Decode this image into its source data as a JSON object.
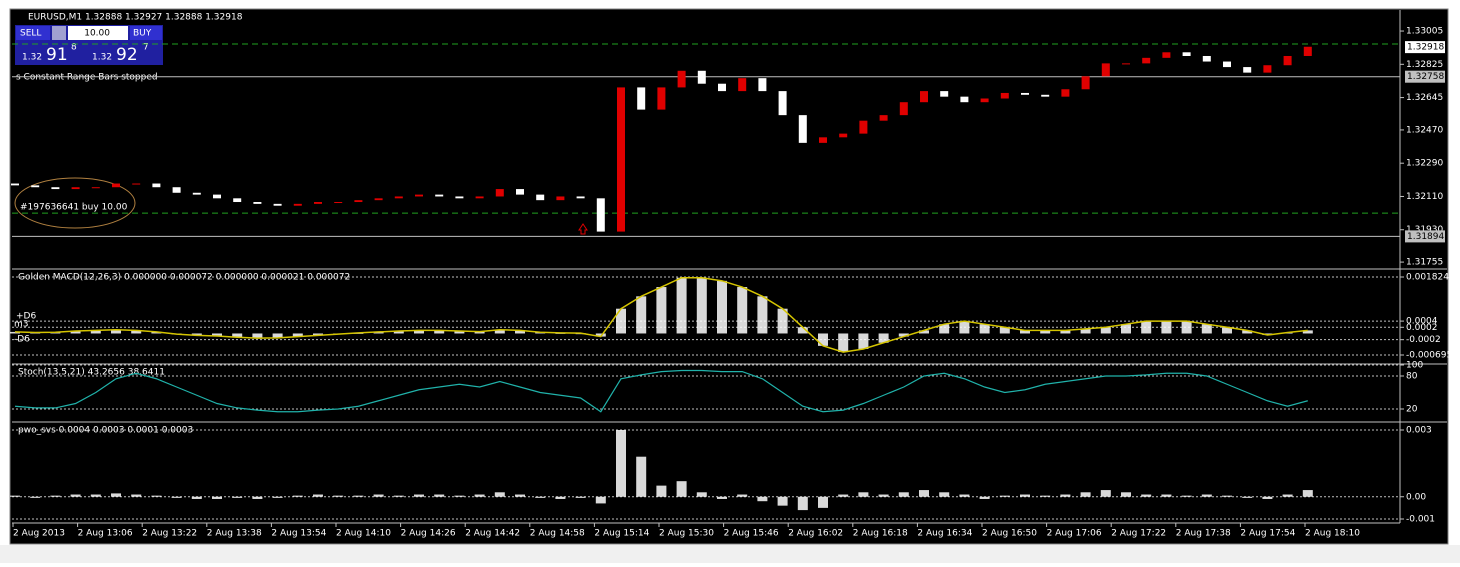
{
  "chart_data": [
    {
      "type": "candlestick",
      "title": "EURUSD,M1  1.32888 1.32927 1.32888 1.32918",
      "xticks": [
        "2 Aug 2013",
        "2 Aug 13:06",
        "2 Aug 13:22",
        "2 Aug 13:38",
        "2 Aug 13:54",
        "2 Aug 14:10",
        "2 Aug 14:26",
        "2 Aug 14:42",
        "2 Aug 14:58",
        "2 Aug 15:14",
        "2 Aug 15:30",
        "2 Aug 15:46",
        "2 Aug 16:02",
        "2 Aug 16:18",
        "2 Aug 16:34",
        "2 Aug 16:50",
        "2 Aug 17:06",
        "2 Aug 17:22",
        "2 Aug 17:38",
        "2 Aug 17:54",
        "2 Aug 18:10"
      ],
      "open": [
        1.3218,
        1.3217,
        1.3216,
        1.3215,
        1.3216,
        1.3216,
        1.3218,
        1.3218,
        1.3216,
        1.3213,
        1.3212,
        1.321,
        1.3208,
        1.3207,
        1.3206,
        1.3207,
        1.3208,
        1.3208,
        1.3209,
        1.321,
        1.3211,
        1.3212,
        1.3211,
        1.321,
        1.3211,
        1.3215,
        1.3212,
        1.3209,
        1.3211,
        1.321,
        1.3192,
        1.327,
        1.3258,
        1.327,
        1.3279,
        1.3272,
        1.3268,
        1.3275,
        1.3268,
        1.3255,
        1.324,
        1.3243,
        1.3245,
        1.3252,
        1.3255,
        1.3262,
        1.3268,
        1.3265,
        1.3262,
        1.3264,
        1.3267,
        1.3266,
        1.3265,
        1.3269,
        1.3276,
        1.3283,
        1.3283,
        1.3286,
        1.3289,
        1.3287,
        1.3284,
        1.3281,
        1.3278,
        1.3282,
        1.3287
      ],
      "close": [
        1.3217,
        1.3216,
        1.3215,
        1.3216,
        1.3216,
        1.3218,
        1.3218,
        1.3216,
        1.3213,
        1.3212,
        1.321,
        1.3208,
        1.3207,
        1.3206,
        1.3207,
        1.3208,
        1.3208,
        1.3209,
        1.321,
        1.3211,
        1.3212,
        1.3211,
        1.321,
        1.3211,
        1.3215,
        1.3212,
        1.3209,
        1.3211,
        1.321,
        1.3192,
        1.327,
        1.3258,
        1.327,
        1.3279,
        1.3272,
        1.3268,
        1.3275,
        1.3268,
        1.3255,
        1.324,
        1.3243,
        1.3245,
        1.3252,
        1.3255,
        1.3262,
        1.3268,
        1.3265,
        1.3262,
        1.3264,
        1.3267,
        1.3266,
        1.3265,
        1.3269,
        1.3276,
        1.3283,
        1.3283,
        1.3286,
        1.3289,
        1.3287,
        1.3284,
        1.3281,
        1.3278,
        1.3282,
        1.3287,
        1.3292
      ],
      "up_color": "#e00000",
      "down_color": "#ffffff",
      "ylim": [
        1.31723,
        1.33108
      ],
      "yticks": [
        1.33005,
        1.32825,
        1.32645,
        {
          "value": 1.3247,
          "label": "1.32470"
        },
        {
          "value": 1.3229,
          "label": "1.32290"
        },
        {
          "value": 1.3211,
          "label": "1.32110"
        },
        {
          "value": 1.3193,
          "label": "1.31930"
        },
        1.31755
      ],
      "price_labels": [
        1.32918,
        1.32758,
        1.31894
      ],
      "levels": [
        1.32935,
        1.3202
      ],
      "annotations": [
        "s Constant Range Bars stopped",
        "#197636641 buy 10.00"
      ],
      "trade_panel": {
        "sell": "SELL",
        "lots": "10.00",
        "buy": "BUY",
        "bid_big": "1.32",
        "bid_pips": "91",
        "bid_frac": "8",
        "ask_big": "1.32",
        "ask_pips": "92",
        "ask_frac": "7"
      }
    },
    {
      "type": "histogram",
      "title": "Golden MACD(12,26,3) 0.000000 0.000072 0.000000 0.000021 0.000072",
      "values": [
        5e-05,
        3e-05,
        4e-05,
        8e-05,
        0.0001,
        0.00012,
        0.0001,
        5e-05,
        -2e-05,
        -6e-05,
        -8e-05,
        -0.00012,
        -0.00015,
        -0.00014,
        -0.0001,
        -6e-05,
        -2e-05,
        2e-05,
        5e-05,
        8e-05,
        0.0001,
        0.0001,
        8e-05,
        6e-05,
        0.00012,
        0.0001,
        4e-05,
        2e-05,
        1e-05,
        -0.0001,
        0.0008,
        0.0012,
        0.0015,
        0.0018,
        0.0018,
        0.0017,
        0.0015,
        0.0012,
        0.0008,
        0.0002,
        -0.0004,
        -0.0006,
        -0.0005,
        -0.0003,
        -0.0001,
        0.0001,
        0.0003,
        0.0004,
        0.0003,
        0.0002,
        0.0001,
        0.0001,
        0.0001,
        0.00015,
        0.0002,
        0.0003,
        0.0004,
        0.0004,
        0.0004,
        0.0003,
        0.0002,
        0.0001,
        -5e-05,
        3e-05,
        0.0001
      ],
      "color": "#ffffff",
      "line_color": "#d4c400",
      "ylim": [
        -0.000695,
        0.001824
      ],
      "yticks": [
        0.001824,
        0.0004,
        0.0002,
        -0.0002,
        -0.000695
      ],
      "level_labels": [
        "+D6",
        "m3",
        "-D6"
      ]
    },
    {
      "type": "line",
      "title": "Stoch(13,5,21) 43.2656 38.6411",
      "values": [
        25,
        22,
        22,
        30,
        50,
        75,
        85,
        75,
        60,
        45,
        30,
        22,
        18,
        15,
        15,
        18,
        20,
        25,
        35,
        45,
        55,
        60,
        65,
        60,
        70,
        60,
        50,
        45,
        40,
        15,
        75,
        82,
        88,
        90,
        90,
        88,
        88,
        75,
        50,
        25,
        15,
        18,
        30,
        45,
        60,
        80,
        85,
        75,
        60,
        50,
        55,
        65,
        70,
        75,
        80,
        80,
        82,
        85,
        85,
        80,
        65,
        50,
        35,
        25,
        35
      ],
      "color": "#20b2aa",
      "ylim": [
        0,
        100
      ],
      "yticks": [
        100,
        80,
        20
      ]
    },
    {
      "type": "histogram",
      "title": "pwo_svs 0.0004 0.0003 0.0001 0.0003",
      "values": [
        5e-05,
        -5e-05,
        5e-05,
        0.0001,
        0.0001,
        0.00015,
        0.0001,
        5e-05,
        -5e-05,
        -0.0001,
        -0.0001,
        -5e-05,
        -0.0001,
        -5e-05,
        5e-05,
        0.0001,
        5e-05,
        5e-05,
        0.0001,
        5e-05,
        0.0001,
        0.0001,
        5e-05,
        0.0001,
        0.0002,
        0.0001,
        -5e-05,
        -0.0001,
        -5e-05,
        -0.0003,
        0.003,
        0.0018,
        0.0005,
        0.0007,
        0.0002,
        -0.0001,
        0.0001,
        -0.0002,
        -0.0004,
        -0.0006,
        -0.0005,
        0.0001,
        0.0002,
        0.0001,
        0.0002,
        0.0003,
        0.0002,
        0.0001,
        -0.0001,
        5e-05,
        0.0001,
        5e-05,
        0.0001,
        0.0002,
        0.0003,
        0.0002,
        0.0001,
        0.0001,
        5e-05,
        0.0001,
        5e-05,
        -5e-05,
        -0.0001,
        0.0001,
        0.0003
      ],
      "color": "#ffffff",
      "ylim": [
        -0.001,
        0.003
      ],
      "yticks": [
        0.003,
        {
          "value": 0,
          "label": "0.00"
        },
        -0.001
      ]
    }
  ]
}
